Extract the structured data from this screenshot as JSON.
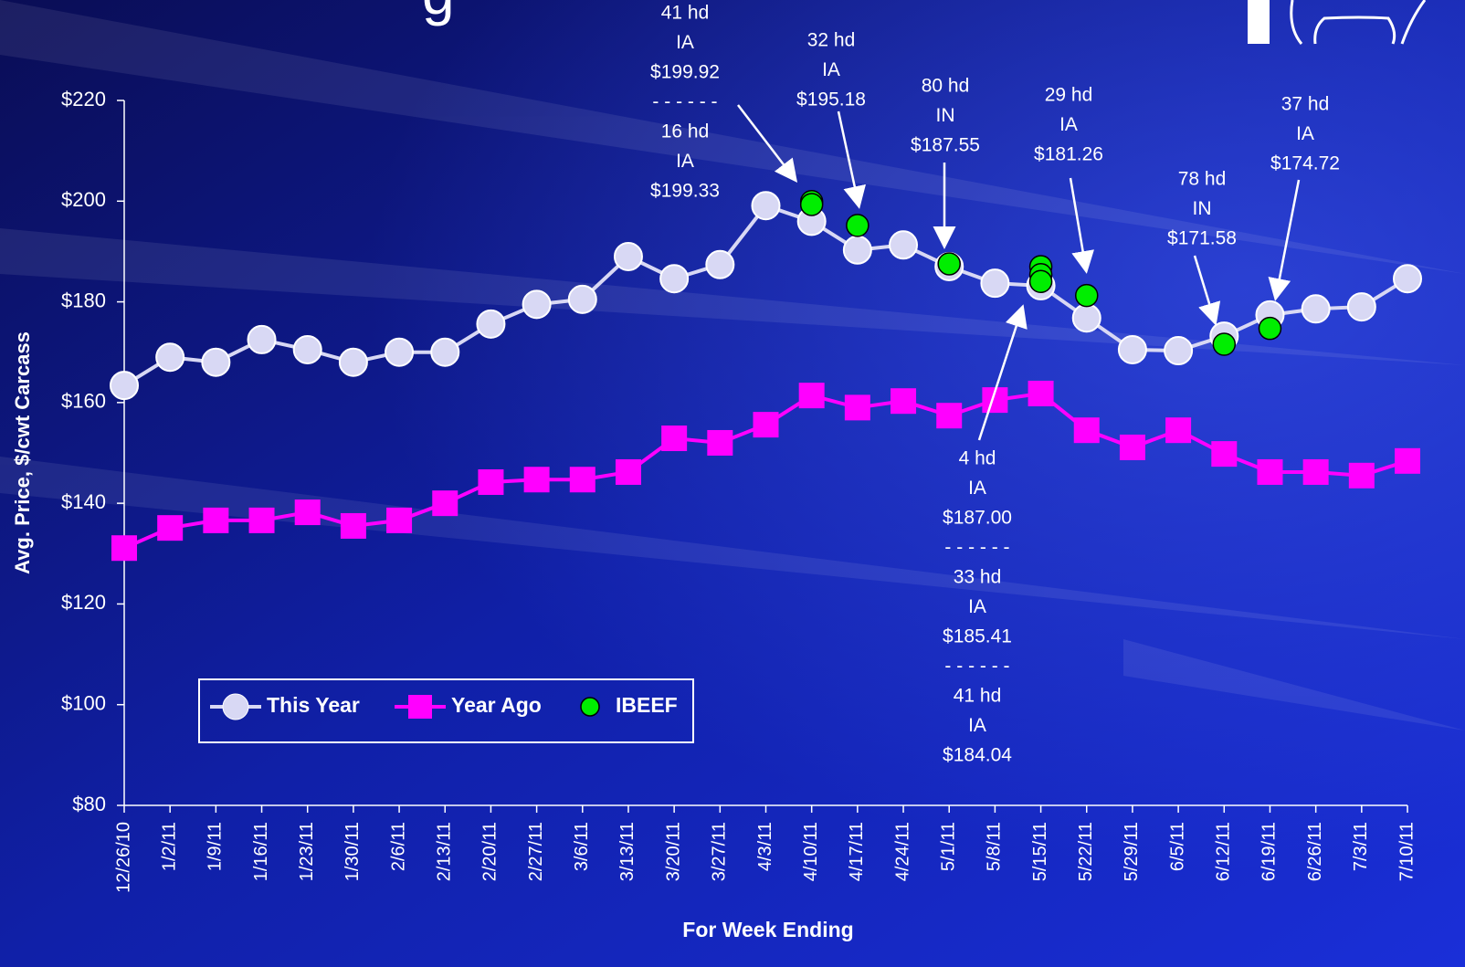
{
  "chart_data": {
    "type": "line",
    "title": "g",
    "y_label": "Avg. Price, $/cwt Carcass",
    "x_label": "For Week Ending",
    "categories": [
      "12/26/10",
      "1/2/11",
      "1/9/11",
      "1/16/11",
      "1/23/11",
      "1/30/11",
      "2/6/11",
      "2/13/11",
      "2/20/11",
      "2/27/11",
      "3/6/11",
      "3/13/11",
      "3/20/11",
      "3/27/11",
      "4/3/11",
      "4/10/11",
      "4/17/11",
      "4/24/11",
      "5/1/11",
      "5/8/11",
      "5/15/11",
      "5/22/11",
      "5/29/11",
      "6/5/11",
      "6/12/11",
      "6/19/11",
      "6/26/11",
      "7/3/11",
      "7/10/11"
    ],
    "ylim": [
      80,
      220
    ],
    "yticks": [
      {
        "value": 80,
        "label": "$80"
      },
      {
        "value": 100,
        "label": "$100"
      },
      {
        "value": 120,
        "label": "$120"
      },
      {
        "value": 140,
        "label": "$140"
      },
      {
        "value": 160,
        "label": "$160"
      },
      {
        "value": 180,
        "label": "$180"
      },
      {
        "value": 200,
        "label": "$200"
      },
      {
        "value": 220,
        "label": "$220"
      }
    ],
    "legend": "bottom-left",
    "series": [
      {
        "name": "This Year",
        "color": "#d8d8f4",
        "marker": "circle",
        "values": [
          163.4,
          169,
          168,
          172.5,
          170.5,
          168,
          170,
          170,
          175.6,
          179.5,
          180.5,
          189,
          184.6,
          187.4,
          199.1,
          196,
          190.3,
          191.3,
          187,
          183.7,
          183.2,
          176.8,
          170.5,
          170.3,
          173.2,
          177.4,
          178.6,
          179,
          184.6
        ]
      },
      {
        "name": "Year Ago",
        "color": "#ff00ff",
        "marker": "square",
        "values": [
          131.1,
          135.1,
          136.6,
          136.6,
          138.2,
          135.5,
          136.6,
          140,
          144.2,
          144.7,
          144.7,
          146.2,
          152.9,
          152,
          155.6,
          161.4,
          159,
          160.3,
          157.4,
          160.5,
          161.8,
          154.5,
          151.1,
          154.5,
          149.8,
          146.2,
          146.2,
          145.5,
          148.4
        ]
      },
      {
        "name": "IBEEF",
        "color": "#00ee00",
        "marker": "dot",
        "x": [
          "4/10/11",
          "4/10/11",
          "4/17/11",
          "5/1/11",
          "5/15/11",
          "5/15/11",
          "5/15/11",
          "5/22/11",
          "6/12/11",
          "6/19/11"
        ],
        "values": [
          199.92,
          199.33,
          195.18,
          187.55,
          187.0,
          185.41,
          184.04,
          181.26,
          171.58,
          174.72
        ]
      }
    ],
    "annotations": [
      {
        "lines": [
          "41 hd",
          "IA",
          "$199.92",
          "- - - - - -",
          "16 hd",
          "IA",
          "$199.33"
        ]
      },
      {
        "lines": [
          "32 hd",
          "IA",
          "$195.18"
        ]
      },
      {
        "lines": [
          "80 hd",
          "IN",
          "$187.55"
        ]
      },
      {
        "lines": [
          "29 hd",
          "IA",
          "$181.26"
        ]
      },
      {
        "lines": [
          "78 hd",
          "IN",
          "$171.58"
        ]
      },
      {
        "lines": [
          "37 hd",
          "IA",
          "$174.72"
        ]
      },
      {
        "lines": [
          "4 hd",
          "IA",
          "$187.00",
          "- - - - - -",
          "33 hd",
          "IA",
          "$185.41",
          "- - - - - -",
          "41 hd",
          "IA",
          "$184.04"
        ]
      }
    ]
  }
}
